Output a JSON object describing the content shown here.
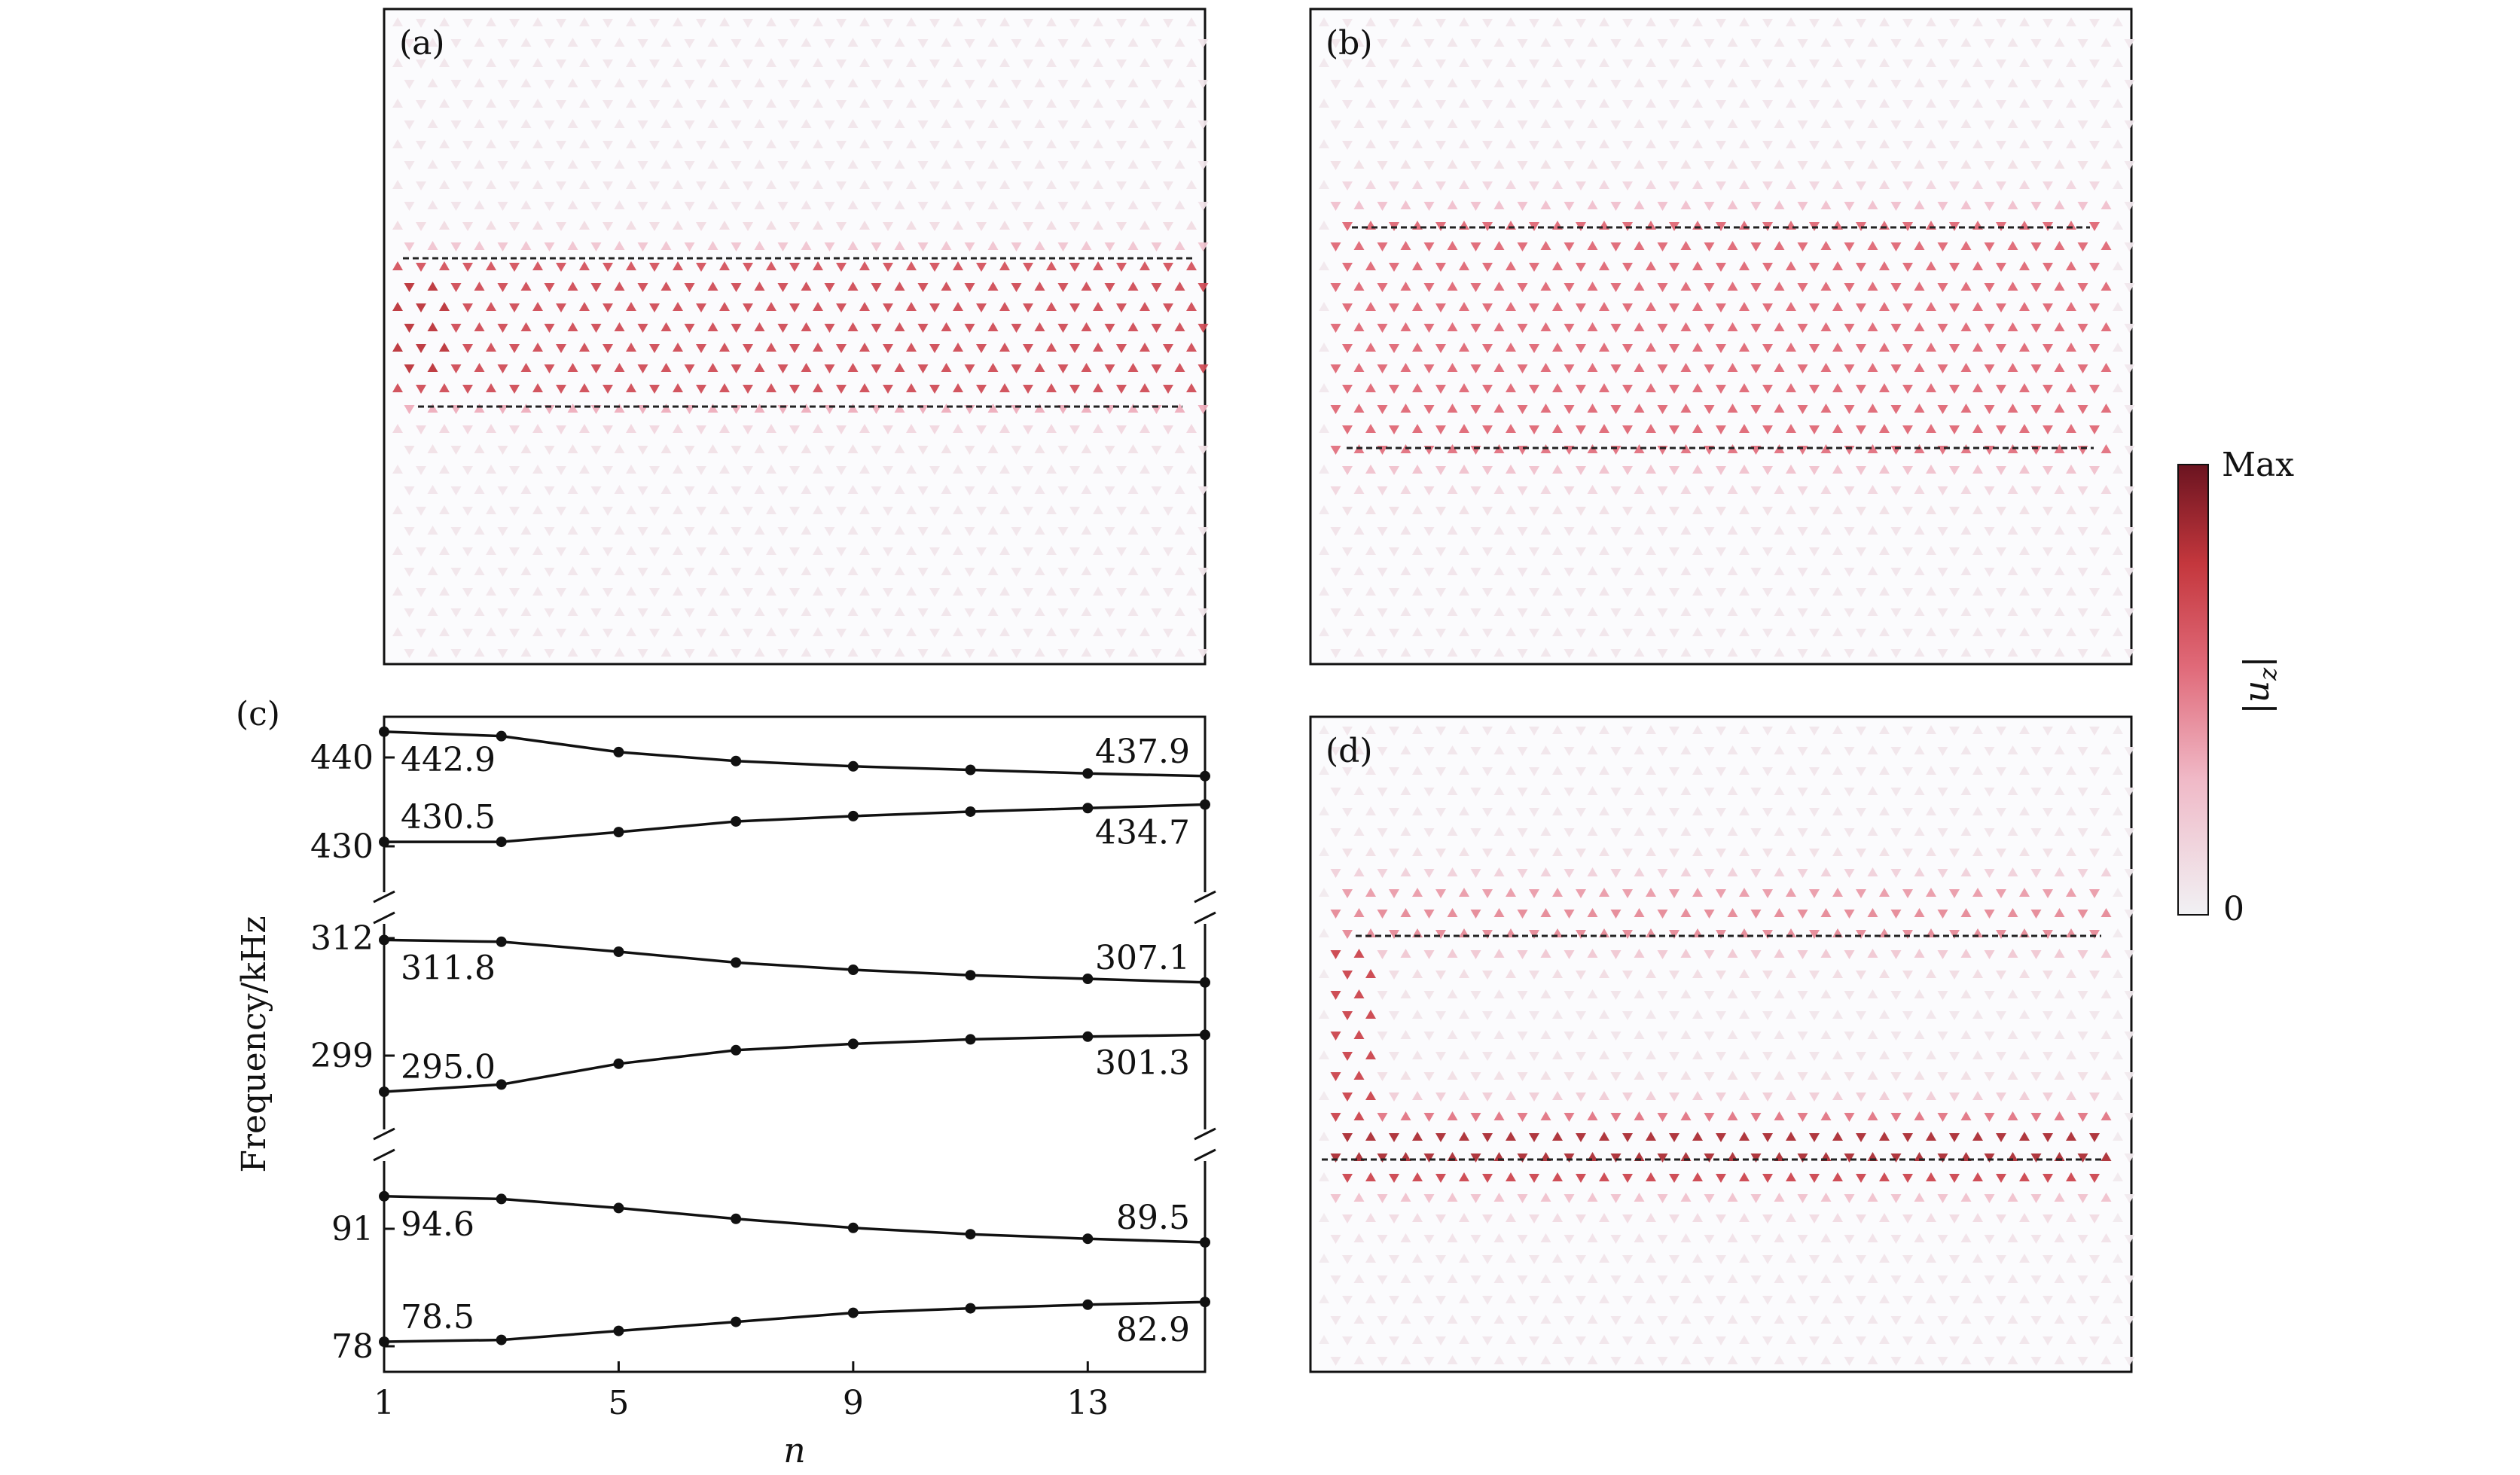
{
  "panels": {
    "a": {
      "label": "(a)"
    },
    "b": {
      "label": "(b)"
    },
    "c": {
      "label": "(c)"
    },
    "d": {
      "label": "(d)"
    }
  },
  "colorbar": {
    "max_label": "Max",
    "min_label": "0",
    "title": "|u_z|",
    "colors": [
      "#f1f1f4",
      "#f0b9c7",
      "#e06a79",
      "#c4373d",
      "#6b1420"
    ]
  },
  "chart_data": {
    "type": "line",
    "title": "",
    "xlabel": "n",
    "ylabel": "Frequency/kHz",
    "xlim": [
      1,
      15
    ],
    "xticks": [
      1,
      5,
      9,
      13
    ],
    "broken_axis": true,
    "y_segments": [
      {
        "name": "upper",
        "ticks": [
          440,
          430
        ]
      },
      {
        "name": "middle",
        "ticks": [
          312,
          299
        ]
      },
      {
        "name": "lower",
        "ticks": [
          91,
          78
        ]
      }
    ],
    "series": [
      {
        "name": "upper-top",
        "segment": "upper",
        "x": [
          1,
          3,
          5,
          7,
          9,
          11,
          13,
          15
        ],
        "values": [
          442.9,
          442.4,
          440.6,
          439.6,
          439.0,
          438.6,
          438.2,
          437.9
        ],
        "start_label": "442.9",
        "end_label": "437.9"
      },
      {
        "name": "upper-bottom",
        "segment": "upper",
        "x": [
          1,
          3,
          5,
          7,
          9,
          11,
          13,
          15
        ],
        "values": [
          430.5,
          430.5,
          431.6,
          432.8,
          433.4,
          433.9,
          434.3,
          434.7
        ],
        "start_label": "430.5",
        "end_label": "434.7"
      },
      {
        "name": "middle-top",
        "segment": "middle",
        "x": [
          1,
          3,
          5,
          7,
          9,
          11,
          13,
          15
        ],
        "values": [
          311.8,
          311.6,
          310.5,
          309.3,
          308.5,
          307.9,
          307.5,
          307.1
        ],
        "start_label": "311.8",
        "end_label": "307.1"
      },
      {
        "name": "middle-bottom",
        "segment": "middle",
        "x": [
          1,
          3,
          5,
          7,
          9,
          11,
          13,
          15
        ],
        "values": [
          295.0,
          295.8,
          298.1,
          299.6,
          300.3,
          300.8,
          301.1,
          301.3
        ],
        "start_label": "295.0",
        "end_label": "301.3"
      },
      {
        "name": "lower-top",
        "segment": "lower",
        "x": [
          1,
          3,
          5,
          7,
          9,
          11,
          13,
          15
        ],
        "values": [
          94.6,
          94.3,
          93.3,
          92.1,
          91.1,
          90.4,
          89.9,
          89.5
        ],
        "start_label": "94.6",
        "end_label": "89.5"
      },
      {
        "name": "lower-bottom",
        "segment": "lower",
        "x": [
          1,
          3,
          5,
          7,
          9,
          11,
          13,
          15
        ],
        "values": [
          78.5,
          78.7,
          79.7,
          80.7,
          81.7,
          82.2,
          82.6,
          82.9
        ],
        "start_label": "78.5",
        "end_label": "82.9"
      }
    ]
  }
}
